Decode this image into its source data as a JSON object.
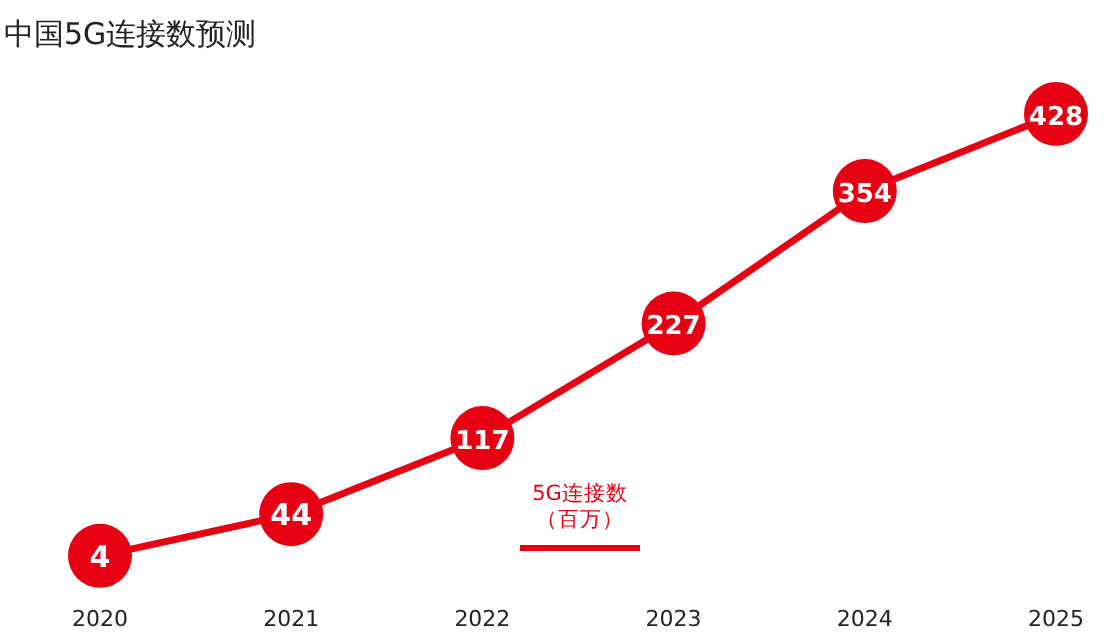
{
  "chart_data": {
    "type": "line",
    "title": "中国5G连接数预测",
    "categories": [
      "2020",
      "2021",
      "2022",
      "2023",
      "2024",
      "2025"
    ],
    "series": [
      {
        "name": "5G连接数（百万）",
        "color": "#e60012",
        "values": [
          4,
          44,
          117,
          227,
          354,
          428
        ]
      }
    ],
    "data_labels": true,
    "marker": "circle",
    "line_style": "solid",
    "legend": "bottom",
    "grid": false
  }
}
